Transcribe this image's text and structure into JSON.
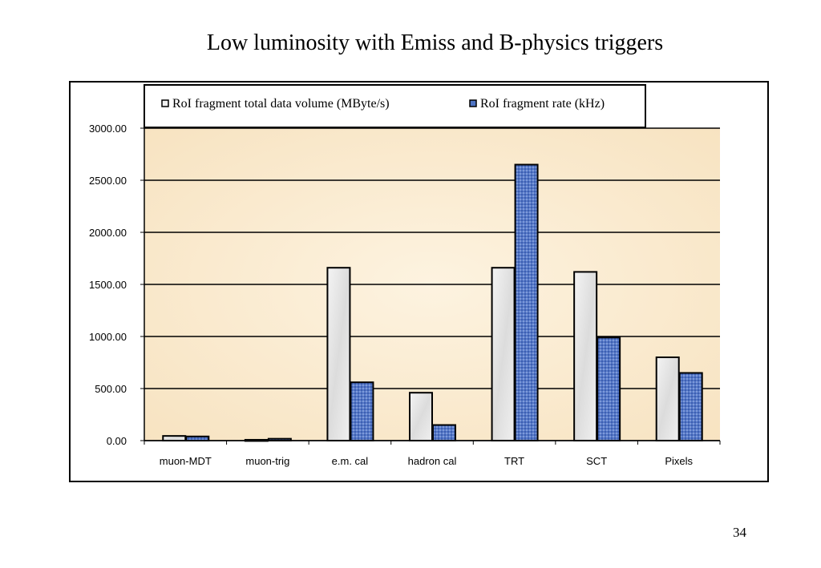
{
  "slide": {
    "title": "Low luminosity with Emiss and B-physics triggers",
    "page_number": "34"
  },
  "chart_data": {
    "type": "bar",
    "title": "",
    "xlabel": "",
    "ylabel": "",
    "categories": [
      "muon-MDT",
      "muon-trig",
      "e.m. cal",
      "hadron cal",
      "TRT",
      "SCT",
      "Pixels"
    ],
    "series": [
      {
        "name": "RoI fragment total data volume (MByte/s)",
        "values": [
          45,
          8,
          1660,
          460,
          1660,
          1620,
          800
        ],
        "fill": "#e8e8e8"
      },
      {
        "name": "RoI fragment rate (kHz)",
        "values": [
          40,
          18,
          560,
          150,
          2650,
          990,
          650
        ],
        "fill": "#4e74c4"
      }
    ],
    "ylim": [
      0,
      3000
    ],
    "yticks": [
      "0.00",
      "500.00",
      "1000.00",
      "1500.00",
      "2000.00",
      "2500.00",
      "3000.00"
    ],
    "grid": true,
    "legend_position": "top",
    "plot_background": "#fdf0d8"
  }
}
